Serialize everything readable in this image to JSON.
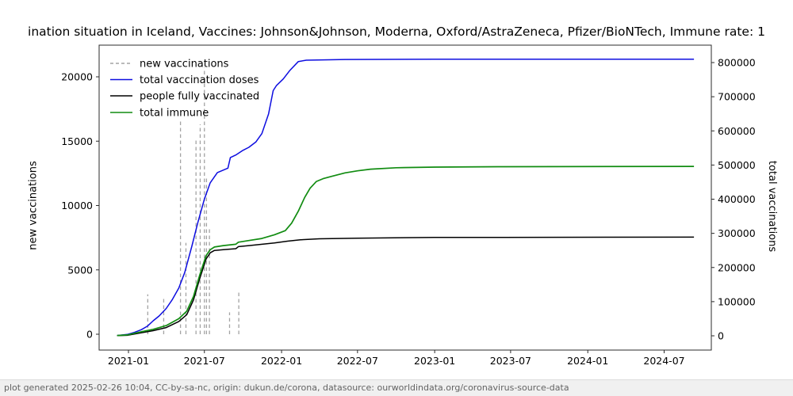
{
  "title": "ination situation in Iceland, Vaccines: Johnson&Johnson, Moderna, Oxford/AstraZeneca, Pfizer/BioNTech, Immune rate: 1",
  "footer": "plot generated 2025-02-26 10:04, CC-by-sa-nc, origin: dukun.de/corona, datasource: ourworldindata.org/coronavirus-source-data",
  "colors": {
    "new_vaccinations": "#a3a3a3",
    "total_vaccination_doses": "#0d0de0",
    "people_fully_vaccinated": "#000000",
    "total_immune": "#118c11",
    "axis": "#2b2b2b",
    "footer_bg": "#f0f0f0",
    "footer_text": "#636363"
  },
  "chart_data": {
    "type": "line",
    "title": "ination situation in Iceland, Vaccines: Johnson&Johnson, Moderna, Oxford/AstraZeneca, Pfizer/BioNTech, Immune rate: 1",
    "grid": false,
    "legend_position": "upper left",
    "x_axis": {
      "label": "",
      "ticks": [
        "2021-01",
        "2021-07",
        "2022-01",
        "2022-07",
        "2023-01",
        "2023-07",
        "2024-01",
        "2024-07"
      ]
    },
    "y_left": {
      "label": "new vaccinations",
      "ticks": [
        0,
        5000,
        10000,
        15000,
        20000
      ],
      "ylim": [
        -1200,
        22400
      ]
    },
    "y_right": {
      "label": "total vaccinations",
      "ticks": [
        0,
        100000,
        200000,
        300000,
        400000,
        500000,
        600000,
        700000,
        800000
      ],
      "ylim": [
        -4600,
        813000
      ]
    },
    "legend": [
      {
        "id": "new_vaccinations",
        "label": "new vaccinations",
        "style": "dashed"
      },
      {
        "id": "total_vaccination_doses",
        "label": "total vaccination doses",
        "style": "solid"
      },
      {
        "id": "people_fully_vaccinated",
        "label": "people fully vaccinated",
        "style": "solid"
      },
      {
        "id": "total_immune",
        "label": "total immune",
        "style": "solid"
      }
    ],
    "series": [
      {
        "id": "new_vaccinations",
        "label": "new vaccinations",
        "axis": "left",
        "render": "vlines-dashed",
        "points": [
          [
            "2021-02-16",
            3100
          ],
          [
            "2021-03-26",
            2800
          ],
          [
            "2021-05-05",
            16600
          ],
          [
            "2021-05-18",
            7100
          ],
          [
            "2021-06-11",
            15100
          ],
          [
            "2021-06-21",
            16300
          ],
          [
            "2021-07-01",
            20700
          ],
          [
            "2021-07-06",
            12300
          ],
          [
            "2021-07-13",
            8300
          ],
          [
            "2021-08-30",
            1700
          ],
          [
            "2021-09-21",
            3400
          ]
        ]
      },
      {
        "id": "total_vaccination_doses",
        "label": "total vaccination doses",
        "axis": "right",
        "render": "line",
        "points": [
          [
            "2020-12-05",
            1000
          ],
          [
            "2020-12-29",
            4000
          ],
          [
            "2021-01-15",
            10000
          ],
          [
            "2021-02-01",
            18000
          ],
          [
            "2021-02-15",
            28000
          ],
          [
            "2021-03-01",
            44000
          ],
          [
            "2021-03-15",
            58000
          ],
          [
            "2021-04-01",
            80000
          ],
          [
            "2021-04-15",
            105000
          ],
          [
            "2021-05-01",
            140000
          ],
          [
            "2021-05-15",
            185000
          ],
          [
            "2021-06-01",
            262000
          ],
          [
            "2021-06-15",
            330000
          ],
          [
            "2021-07-01",
            400000
          ],
          [
            "2021-07-15",
            448000
          ],
          [
            "2021-08-01",
            478000
          ],
          [
            "2021-08-26",
            491000
          ],
          [
            "2021-09-01",
            522000
          ],
          [
            "2021-09-15",
            530000
          ],
          [
            "2021-10-01",
            543000
          ],
          [
            "2021-10-15",
            552000
          ],
          [
            "2021-11-01",
            568000
          ],
          [
            "2021-11-15",
            592000
          ],
          [
            "2021-12-01",
            650000
          ],
          [
            "2021-12-12",
            718000
          ],
          [
            "2021-12-20",
            733000
          ],
          [
            "2022-01-05",
            752000
          ],
          [
            "2022-01-20",
            776000
          ],
          [
            "2022-02-10",
            803000
          ],
          [
            "2022-03-01",
            807000
          ],
          [
            "2022-06-01",
            809000
          ],
          [
            "2023-01-01",
            810000
          ],
          [
            "2024-09-10",
            810000
          ]
        ]
      },
      {
        "id": "people_fully_vaccinated",
        "label": "people fully vaccinated",
        "axis": "right",
        "render": "line",
        "points": [
          [
            "2020-12-05",
            500
          ],
          [
            "2020-12-29",
            1500
          ],
          [
            "2021-02-01",
            9000
          ],
          [
            "2021-03-01",
            15000
          ],
          [
            "2021-04-01",
            24000
          ],
          [
            "2021-05-01",
            42000
          ],
          [
            "2021-05-20",
            62000
          ],
          [
            "2021-06-05",
            105000
          ],
          [
            "2021-06-20",
            168000
          ],
          [
            "2021-07-05",
            225000
          ],
          [
            "2021-07-15",
            243000
          ],
          [
            "2021-07-25",
            250000
          ],
          [
            "2021-08-15",
            252000
          ],
          [
            "2021-09-14",
            255000
          ],
          [
            "2021-09-20",
            261000
          ],
          [
            "2021-10-15",
            264000
          ],
          [
            "2021-12-15",
            272000
          ],
          [
            "2022-01-15",
            277000
          ],
          [
            "2022-02-15",
            281000
          ],
          [
            "2022-04-01",
            284000
          ],
          [
            "2022-07-01",
            286000
          ],
          [
            "2023-01-01",
            288000
          ],
          [
            "2024-09-10",
            289000
          ]
        ]
      },
      {
        "id": "total_immune",
        "label": "total immune",
        "axis": "right",
        "render": "line",
        "points": [
          [
            "2020-12-05",
            1000
          ],
          [
            "2020-12-29",
            2500
          ],
          [
            "2021-02-01",
            12000
          ],
          [
            "2021-03-01",
            19000
          ],
          [
            "2021-04-01",
            30000
          ],
          [
            "2021-05-01",
            50000
          ],
          [
            "2021-05-20",
            72000
          ],
          [
            "2021-06-05",
            115000
          ],
          [
            "2021-06-20",
            178000
          ],
          [
            "2021-07-05",
            235000
          ],
          [
            "2021-07-15",
            252000
          ],
          [
            "2021-07-25",
            260000
          ],
          [
            "2021-08-15",
            264000
          ],
          [
            "2021-09-14",
            268000
          ],
          [
            "2021-09-20",
            274000
          ],
          [
            "2021-10-15",
            279000
          ],
          [
            "2021-11-15",
            285000
          ],
          [
            "2021-12-15",
            296000
          ],
          [
            "2022-01-10",
            308000
          ],
          [
            "2022-01-25",
            330000
          ],
          [
            "2022-02-10",
            365000
          ],
          [
            "2022-02-25",
            405000
          ],
          [
            "2022-03-10",
            432000
          ],
          [
            "2022-03-25",
            452000
          ],
          [
            "2022-04-10",
            460000
          ],
          [
            "2022-05-01",
            467000
          ],
          [
            "2022-06-01",
            477000
          ],
          [
            "2022-07-01",
            483000
          ],
          [
            "2022-08-01",
            488000
          ],
          [
            "2022-10-01",
            492000
          ],
          [
            "2023-01-01",
            494000
          ],
          [
            "2023-06-01",
            495000
          ],
          [
            "2024-09-10",
            496000
          ]
        ]
      }
    ]
  }
}
